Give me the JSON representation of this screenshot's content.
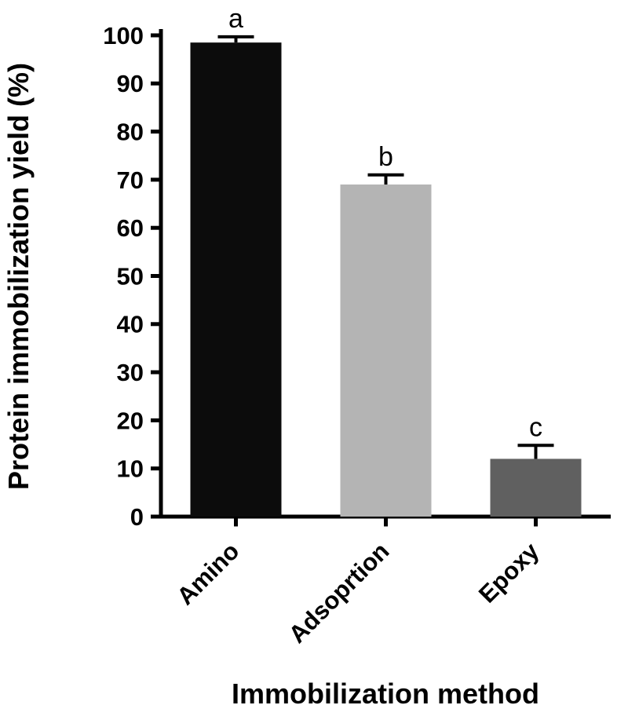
{
  "figure": {
    "background": "#ffffff"
  },
  "chart_data": {
    "type": "bar",
    "title": "",
    "categories": [
      "Amino",
      "Adsoprtion",
      "Epoxy"
    ],
    "values": [
      98.5,
      69,
      12
    ],
    "errors": [
      1.2,
      2,
      2.8
    ],
    "error_bar_direction": "upper",
    "sig_letters": [
      "a",
      "b",
      "c"
    ],
    "bar_colors": [
      "#0c0c0c",
      "#b4b4b4",
      "#606060"
    ],
    "xlabel": "Immobilization method",
    "ylabel": "Protein immobilization yield (%)",
    "ylim": [
      0,
      100
    ],
    "ytick_step": 10,
    "yticks": [
      0,
      10,
      20,
      30,
      40,
      50,
      60,
      70,
      80,
      90,
      100
    ],
    "grid": false,
    "legend": "none",
    "axis_color": "#000000"
  }
}
